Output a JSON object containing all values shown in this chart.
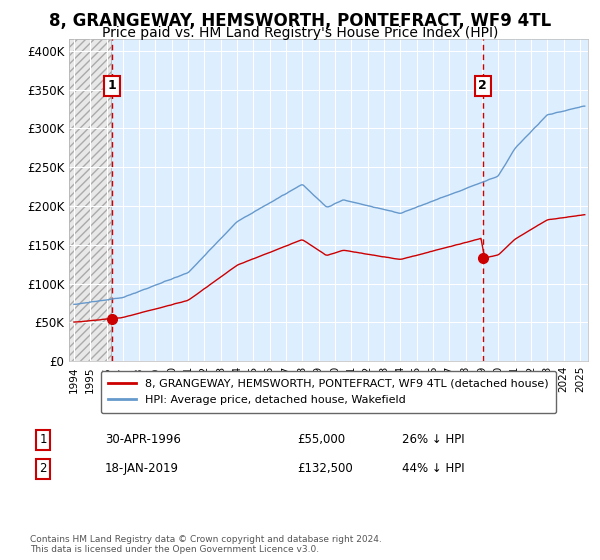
{
  "title": "8, GRANGEWAY, HEMSWORTH, PONTEFRACT, WF9 4TL",
  "subtitle": "Price paid vs. HM Land Registry's House Price Index (HPI)",
  "title_fontsize": 12,
  "subtitle_fontsize": 10,
  "ylabel_ticks": [
    "£0",
    "£50K",
    "£100K",
    "£150K",
    "£200K",
    "£250K",
    "£300K",
    "£350K",
    "£400K"
  ],
  "ytick_vals": [
    0,
    50000,
    100000,
    150000,
    200000,
    250000,
    300000,
    350000,
    400000
  ],
  "ylim": [
    0,
    415000
  ],
  "xlim_start": 1993.7,
  "xlim_end": 2025.5,
  "hatch_end": 1996.25,
  "sale1_x": 1996.33,
  "sale1_y": 55000,
  "sale2_x": 2019.05,
  "sale2_y": 132500,
  "sale1_label": "1",
  "sale2_label": "2",
  "red_line_color": "#cc0000",
  "blue_line_color": "#6699cc",
  "plot_bg_color": "#ddeeff",
  "hatch_facecolor": "#e8e8e8",
  "marker_color": "#cc0000",
  "dashed_line_color": "#cc0000",
  "grid_color": "#ffffff",
  "legend_line1": "8, GRANGEWAY, HEMSWORTH, PONTEFRACT, WF9 4TL (detached house)",
  "legend_line2": "HPI: Average price, detached house, Wakefield",
  "annotation1_label": "1",
  "annotation1_date": "30-APR-1996",
  "annotation1_price": "£55,000",
  "annotation1_hpi": "26% ↓ HPI",
  "annotation2_label": "2",
  "annotation2_date": "18-JAN-2019",
  "annotation2_price": "£132,500",
  "annotation2_hpi": "44% ↓ HPI",
  "footnote": "Contains HM Land Registry data © Crown copyright and database right 2024.\nThis data is licensed under the Open Government Licence v3.0.",
  "background_color": "#ffffff",
  "font_family": "DejaVu Sans"
}
